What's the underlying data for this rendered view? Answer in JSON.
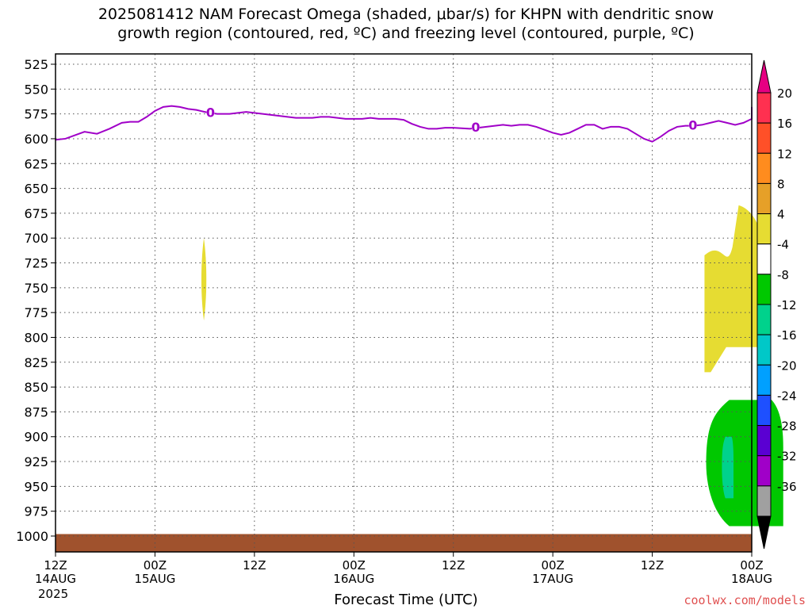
{
  "title": "2025081412 NAM Forecast Omega (shaded, μbar/s) for KHPN with dendritic snow\ngrowth region (contoured, red, ºC) and freezing level (contoured, purple, ºC)",
  "xlabel": "Forecast Time (UTC)",
  "credit": "coolwx.com/models",
  "year": "2025",
  "chart_data": {
    "type": "area",
    "title": "2025081412 NAM Forecast Omega (shaded, μbar/s) for KHPN with dendritic snow growth region (contoured, red, ºC) and freezing level (contoured, purple, ºC)",
    "xlabel": "Forecast Time (UTC)",
    "ylabel": "",
    "x_range_hours": [
      0,
      84
    ],
    "y_range_hPa": [
      1010,
      515
    ],
    "y_ticks": [
      525,
      550,
      575,
      600,
      625,
      650,
      675,
      700,
      725,
      750,
      775,
      800,
      825,
      850,
      875,
      900,
      925,
      950,
      975,
      1000
    ],
    "x_ticks": [
      {
        "hour": 0,
        "time": "12Z",
        "date": "14AUG"
      },
      {
        "hour": 12,
        "time": "00Z",
        "date": "15AUG"
      },
      {
        "hour": 24,
        "time": "12Z",
        "date": ""
      },
      {
        "hour": 36,
        "time": "00Z",
        "date": "16AUG"
      },
      {
        "hour": 48,
        "time": "12Z",
        "date": ""
      },
      {
        "hour": 60,
        "time": "00Z",
        "date": "17AUG"
      },
      {
        "hour": 72,
        "time": "12Z",
        "date": ""
      },
      {
        "hour": 84,
        "time": "00Z",
        "date": "18AUG"
      }
    ],
    "grid": true,
    "freezing_level": {
      "color": "#a000c8",
      "label": "0",
      "label_hours": [
        18.7,
        50.7,
        76.9
      ],
      "points": [
        [
          0,
          601
        ],
        [
          1.2,
          600
        ],
        [
          2.5,
          596
        ],
        [
          3.5,
          593
        ],
        [
          5,
          595
        ],
        [
          6.5,
          590
        ],
        [
          8,
          584
        ],
        [
          9,
          583
        ],
        [
          10,
          583
        ],
        [
          11,
          578
        ],
        [
          12,
          572
        ],
        [
          13,
          568
        ],
        [
          14,
          567
        ],
        [
          15,
          568
        ],
        [
          16,
          570
        ],
        [
          17,
          571
        ],
        [
          18,
          573
        ],
        [
          18.7,
          574
        ],
        [
          19.5,
          575
        ],
        [
          21,
          575
        ],
        [
          22,
          574
        ],
        [
          23,
          573
        ],
        [
          24,
          574
        ],
        [
          25,
          575
        ],
        [
          26,
          576
        ],
        [
          27,
          577
        ],
        [
          28,
          578
        ],
        [
          29,
          579
        ],
        [
          30,
          579
        ],
        [
          31,
          579
        ],
        [
          32,
          578
        ],
        [
          33,
          578
        ],
        [
          34,
          579
        ],
        [
          35,
          580
        ],
        [
          36,
          580
        ],
        [
          37,
          580
        ],
        [
          38,
          579
        ],
        [
          39,
          580
        ],
        [
          40,
          580
        ],
        [
          41,
          580
        ],
        [
          42,
          581
        ],
        [
          43,
          585
        ],
        [
          44,
          588
        ],
        [
          45,
          590
        ],
        [
          46,
          590
        ],
        [
          47,
          589
        ],
        [
          48,
          589
        ],
        [
          50,
          590
        ],
        [
          51,
          589
        ],
        [
          52,
          588
        ],
        [
          53,
          587
        ],
        [
          54,
          586
        ],
        [
          55,
          587
        ],
        [
          56,
          586
        ],
        [
          57,
          586
        ],
        [
          58,
          588
        ],
        [
          59,
          591
        ],
        [
          60,
          594
        ],
        [
          61,
          596
        ],
        [
          62,
          594
        ],
        [
          63,
          590
        ],
        [
          64,
          586
        ],
        [
          65,
          586
        ],
        [
          66,
          590
        ],
        [
          67,
          588
        ],
        [
          68,
          588
        ],
        [
          69,
          590
        ],
        [
          70,
          595
        ],
        [
          71,
          600
        ],
        [
          72,
          603
        ],
        [
          73,
          598
        ],
        [
          74,
          592
        ],
        [
          75,
          588
        ],
        [
          76,
          587
        ],
        [
          77,
          587
        ],
        [
          78,
          586
        ],
        [
          79,
          584
        ],
        [
          80,
          582
        ],
        [
          81,
          584
        ],
        [
          82,
          586
        ],
        [
          83,
          584
        ],
        [
          84,
          580
        ],
        [
          85,
          576
        ],
        [
          86,
          572
        ],
        [
          87,
          568
        ]
      ]
    },
    "omega_colorbar": {
      "levels": [
        20,
        16,
        12,
        8,
        4,
        -4,
        -8,
        -12,
        -16,
        -20,
        -24,
        -28,
        -32,
        -36
      ],
      "colors": [
        "#ff3050",
        "#ff5028",
        "#ff8c1e",
        "#e6a028",
        "#e6dc32",
        "#ffffff",
        "#00c800",
        "#00d28c",
        "#00c8c8",
        "#00a0ff",
        "#1e50ff",
        "#5a00d2",
        "#a000c8",
        "#a0a0a0"
      ]
    },
    "omega_shading": [
      {
        "value_range": [
          4,
          8
        ],
        "color": "#e6dc32",
        "hours": [
          17.5,
          18.3
        ],
        "pressure_range": [
          700,
          783
        ]
      },
      {
        "value_range": [
          4,
          8
        ],
        "color": "#e6dc32",
        "hours": [
          78.3,
          85.8
        ],
        "pressure_range": [
          667,
          835
        ]
      },
      {
        "value_range": [
          -8,
          -4
        ],
        "color": "#00c800",
        "hours": [
          78.5,
          87.8
        ],
        "pressure_range": [
          863,
          990
        ]
      },
      {
        "value_range": [
          -12,
          -8
        ],
        "color": "#00d28c",
        "hours": [
          80.4,
          81.8
        ],
        "pressure_range": [
          900,
          962
        ]
      }
    ],
    "surface": {
      "color": "#a0522d",
      "pressure_range": [
        998,
        1010
      ]
    }
  }
}
